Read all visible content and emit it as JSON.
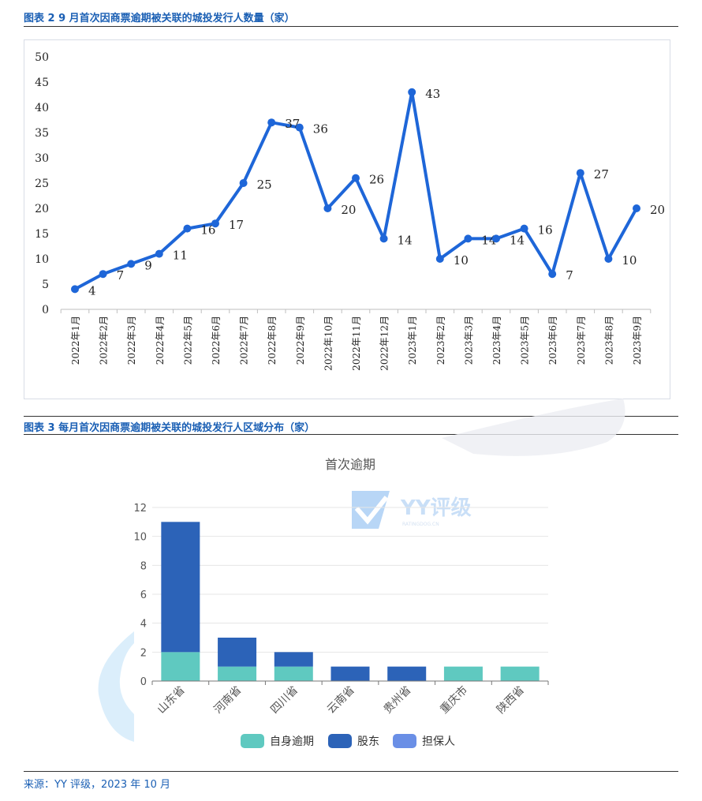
{
  "figure2": {
    "title": "图表 2 9 月首次因商票逾期被关联的城投发行人数量（家）"
  },
  "figure3": {
    "title": "图表 3 每月首次因商票逾期被关联的城投发行人区域分布（家）"
  },
  "watermark": {
    "brand": "YY评级",
    "sub": "RATINGDOG.CN"
  },
  "source": "来源：YY 评级，2023 年 10 月",
  "colors": {
    "line": "#1e66d8",
    "self": "#5fc9c0",
    "shareholder": "#2c63b8",
    "guarantor": "#6a8fe6",
    "title_blue": "#1a5fb4"
  },
  "chart_data": [
    {
      "type": "line",
      "title": "",
      "xlabel": "",
      "ylabel": "",
      "ylim": [
        0,
        50
      ],
      "yticks": [
        "0",
        "5",
        "10",
        "15",
        "20",
        "25",
        "30",
        "35",
        "40",
        "45",
        "50"
      ],
      "grid": false,
      "categories": [
        "2022年1月",
        "2022年2月",
        "2022年3月",
        "2022年4月",
        "2022年5月",
        "2022年6月",
        "2022年7月",
        "2022年8月",
        "2022年9月",
        "2022年10月",
        "2022年11月",
        "2022年12月",
        "2023年1月",
        "2023年2月",
        "2023年3月",
        "2023年4月",
        "2023年5月",
        "2023年6月",
        "2023年7月",
        "2023年8月",
        "2023年9月"
      ],
      "values": [
        4,
        7,
        9,
        11,
        16,
        17,
        25,
        37,
        36,
        20,
        26,
        14,
        43,
        10,
        14,
        14,
        16,
        7,
        27,
        10,
        20
      ]
    },
    {
      "type": "bar",
      "stacked": true,
      "title": "首次逾期",
      "xlabel": "",
      "ylabel": "",
      "ylim": [
        0,
        12
      ],
      "yticks": [
        "0",
        "2",
        "4",
        "6",
        "8",
        "10",
        "12"
      ],
      "grid": true,
      "legend_position": "bottom",
      "categories": [
        "山东省",
        "河南省",
        "四川省",
        "云南省",
        "贵州省",
        "重庆市",
        "陕西省"
      ],
      "series": [
        {
          "name": "自身逾期",
          "values": [
            2,
            1,
            1,
            0,
            0,
            1,
            1
          ]
        },
        {
          "name": "股东",
          "values": [
            9,
            2,
            1,
            1,
            1,
            0,
            0
          ]
        },
        {
          "name": "担保人",
          "values": [
            0,
            0,
            0,
            0,
            0,
            0,
            0
          ]
        }
      ]
    }
  ]
}
